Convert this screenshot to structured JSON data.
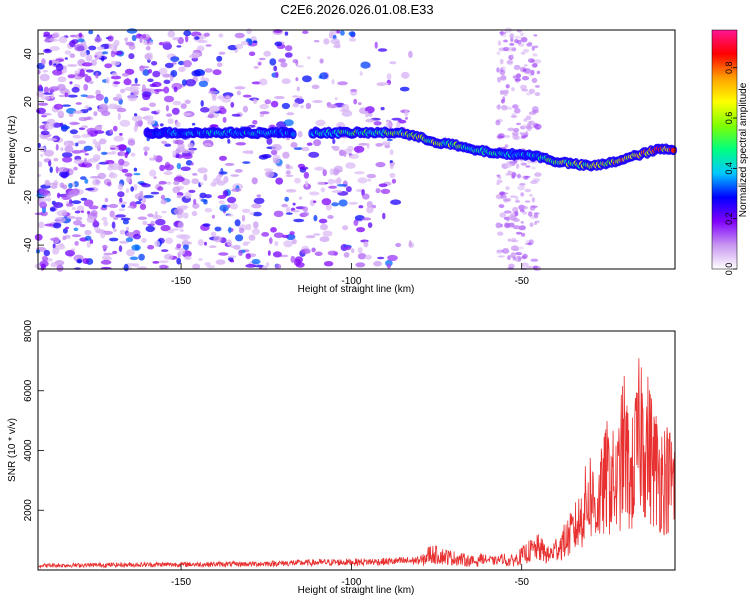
{
  "title": "C2E6.2026.026.01.08.E33",
  "chart_data": [
    {
      "type": "heatmap",
      "xlabel": "Height of straight line (km)",
      "ylabel": "Frequency (Hz)",
      "xlim": [
        -192,
        -5
      ],
      "ylim": [
        -50,
        50
      ],
      "x_ticks": [
        -150,
        -100,
        -50
      ],
      "y_ticks": [
        -40,
        -20,
        0,
        20,
        40
      ],
      "colorbar": {
        "label": "Normalized spectral amplitude",
        "range": [
          0,
          0.95
        ],
        "ticks": [
          0,
          0.2,
          0.4,
          0.6,
          0.8
        ],
        "colors": [
          "#ffffff",
          "#c896f0",
          "#8000ff",
          "#0000ff",
          "#00c8ff",
          "#00ff80",
          "#80ff00",
          "#ffff00",
          "#ffa000",
          "#ff0000",
          "#ff1493"
        ]
      },
      "ridge": {
        "x": [
          -160,
          -150,
          -140,
          -130,
          -120,
          -110,
          -100,
          -90,
          -85,
          -80,
          -75,
          -70,
          -65,
          -60,
          -55,
          -50,
          -45,
          -40,
          -35,
          -30,
          -25,
          -20,
          -15,
          -10,
          -5
        ],
        "y": [
          7,
          7,
          7,
          7,
          7,
          7,
          7,
          7,
          7,
          5,
          3,
          2,
          0,
          -1,
          -2,
          -2,
          -3,
          -5,
          -6,
          -7,
          -6,
          -4,
          -2,
          0,
          0
        ],
        "amplitude": [
          0.3,
          0.4,
          0.45,
          0.45,
          0.35,
          0.45,
          0.55,
          0.55,
          0.6,
          0.7,
          0.65,
          0.6,
          0.55,
          0.5,
          0.45,
          0.4,
          0.5,
          0.6,
          0.65,
          0.7,
          0.75,
          0.8,
          0.85,
          0.9,
          0.9
        ],
        "gap": [
          -116,
          -162
        ]
      },
      "noise_region": {
        "x_start": -192,
        "x_end": -82,
        "band": [
          -57,
          -45
        ]
      }
    },
    {
      "type": "line",
      "xlabel": "Height of straight line (km)",
      "ylabel": "SNR (10 * v/v)",
      "xlim": [
        -192,
        -5
      ],
      "ylim": [
        0,
        8000
      ],
      "x_ticks": [
        -150,
        -100,
        -50
      ],
      "y_ticks": [
        2000,
        4000,
        6000,
        8000
      ],
      "color": "#e83030",
      "envelope": {
        "x": [
          -192,
          -160,
          -130,
          -110,
          -90,
          -80,
          -77,
          -72,
          -65,
          -58,
          -52,
          -48,
          -45,
          -42,
          -40,
          -38,
          -35,
          -33,
          -30,
          -28,
          -25,
          -22,
          -20,
          -18,
          -15,
          -12,
          -10,
          -5
        ],
        "y": [
          150,
          180,
          200,
          250,
          280,
          320,
          800,
          650,
          450,
          300,
          500,
          900,
          1100,
          700,
          1050,
          1300,
          1900,
          2400,
          3800,
          3000,
          4600,
          4100,
          6200,
          4300,
          7000,
          5600,
          4800,
          4300
        ]
      }
    }
  ]
}
